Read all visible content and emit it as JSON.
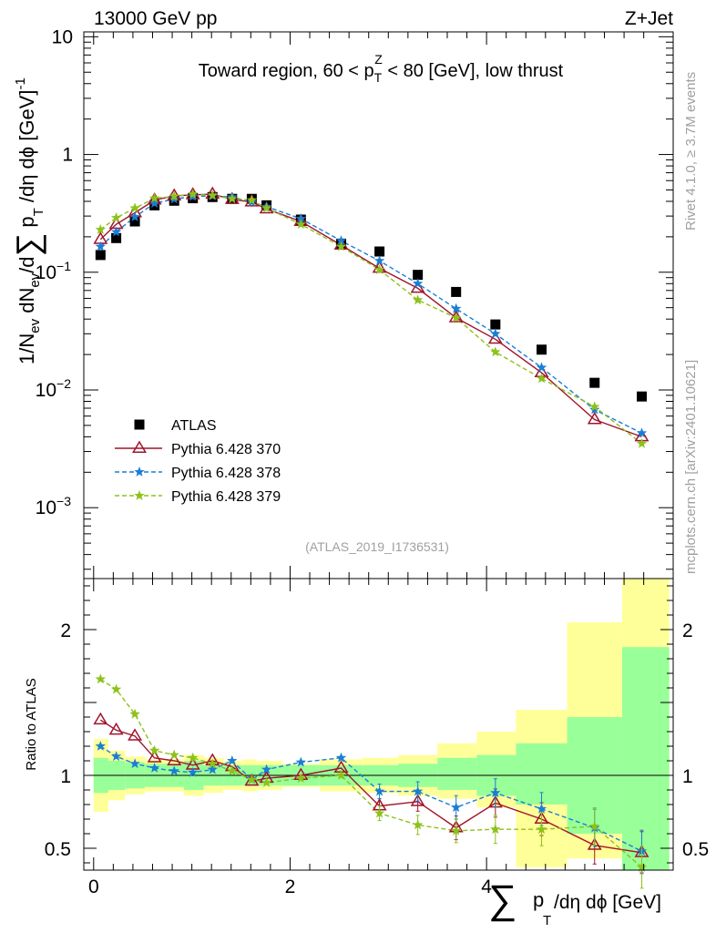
{
  "header": {
    "left": "13000 GeV pp",
    "right": "Z+Jet"
  },
  "side_labels": {
    "rivet": "Rivet 4.1.0, ≥ 3.7M events",
    "mcplots": "mcplots.cern.ch [arXiv:2401.10621]"
  },
  "colors": {
    "atlas": "#000000",
    "p370": "#a0142b",
    "p378": "#1a7ed6",
    "p379": "#8cc21a",
    "band_inner": "#99ff99",
    "band_outer": "#ffff99"
  },
  "chart_data": [
    {
      "type": "scatter",
      "title": "Toward region, 60 < p_T^Z < 80 [GeV], low thrust",
      "title_parts": {
        "pre": "Toward region, 60 < p",
        "sub": "T",
        "sup": "Z",
        "post": " < 80 [GeV], low thrust"
      },
      "watermark": "(ATLAS_2019_I1736531)",
      "ylabel": "1/N_ev dN_ev/d∑p_T/dη dφ [GeV]^-1",
      "yscale": "log",
      "ylim": [
        0.00025,
        11
      ],
      "xlim": [
        -0.1,
        5.9
      ],
      "y_ticks": [
        {
          "value": 10,
          "label": "10"
        },
        {
          "value": 1,
          "label": "1"
        },
        {
          "value": 0.1,
          "label": "10",
          "exp": "−1"
        },
        {
          "value": 0.01,
          "label": "10",
          "exp": "−2"
        },
        {
          "value": 0.001,
          "label": "10",
          "exp": "−3"
        }
      ],
      "x": [
        0.07,
        0.23,
        0.42,
        0.62,
        0.82,
        1.01,
        1.21,
        1.41,
        1.61,
        1.76,
        2.11,
        2.52,
        2.91,
        3.3,
        3.69,
        4.09,
        4.56,
        5.1,
        5.58
      ],
      "series": [
        {
          "name": "ATLAS",
          "marker": "square",
          "values": [
            0.14,
            0.195,
            0.27,
            0.37,
            0.405,
            0.425,
            0.435,
            0.42,
            0.42,
            0.37,
            0.28,
            0.175,
            0.15,
            0.095,
            0.068,
            0.036,
            0.022,
            0.0115,
            0.0088
          ]
        },
        {
          "name": "Pythia 6.428 370",
          "marker": "triangle",
          "line": "solid",
          "values": [
            0.19,
            0.255,
            0.32,
            0.41,
            0.445,
            0.455,
            0.46,
            0.415,
            0.395,
            0.345,
            0.27,
            0.17,
            0.108,
            0.073,
            0.041,
            0.027,
            0.014,
            0.0056,
            0.004
          ]
        },
        {
          "name": "Pythia 6.428 378",
          "marker": "star",
          "line": "dashed",
          "values": [
            0.165,
            0.22,
            0.295,
            0.385,
            0.418,
            0.44,
            0.445,
            0.435,
            0.395,
            0.36,
            0.285,
            0.185,
            0.125,
            0.08,
            0.049,
            0.03,
            0.0155,
            0.0068,
            0.0043
          ]
        },
        {
          "name": "Pythia 6.428 379",
          "marker": "star",
          "line": "dashed",
          "values": [
            0.23,
            0.29,
            0.35,
            0.425,
            0.44,
            0.46,
            0.45,
            0.42,
            0.41,
            0.35,
            0.255,
            0.165,
            0.105,
            0.058,
            0.041,
            0.021,
            0.0125,
            0.0072,
            0.0035
          ]
        }
      ]
    },
    {
      "type": "scatter",
      "xlabel": "∑ p_T /dη dφ [GeV]",
      "ylabel": "Ratio to ATLAS",
      "ylim": [
        0.35,
        2.35
      ],
      "xlim": [
        -0.1,
        5.9
      ],
      "reference_line": 1,
      "y_ticks": [
        {
          "value": 2,
          "label": "2"
        },
        {
          "value": 1,
          "label": "1"
        },
        {
          "value": 0.5,
          "label": "0.5"
        }
      ],
      "x_ticks": [
        {
          "value": 0,
          "label": "0"
        },
        {
          "value": 2,
          "label": "2"
        },
        {
          "value": 4,
          "label": "4"
        }
      ],
      "x_edges": [
        0.0,
        0.15,
        0.32,
        0.52,
        0.72,
        0.92,
        1.12,
        1.32,
        1.52,
        1.66,
        1.92,
        2.3,
        2.74,
        3.1,
        3.5,
        3.9,
        4.3,
        4.82,
        5.38,
        5.86
      ],
      "band_inner": [
        [
          0.88,
          1.12
        ],
        [
          0.9,
          1.1
        ],
        [
          0.91,
          1.09
        ],
        [
          0.92,
          1.08
        ],
        [
          0.92,
          1.08
        ],
        [
          0.9,
          1.1
        ],
        [
          0.93,
          1.07
        ],
        [
          0.93,
          1.07
        ],
        [
          0.93,
          1.07
        ],
        [
          0.93,
          1.07
        ],
        [
          0.93,
          1.07
        ],
        [
          0.93,
          1.07
        ],
        [
          0.93,
          1.07
        ],
        [
          0.92,
          1.08
        ],
        [
          0.9,
          1.12
        ],
        [
          0.86,
          1.14
        ],
        [
          0.8,
          1.22
        ],
        [
          0.6,
          1.4
        ],
        [
          0.35,
          1.88
        ]
      ],
      "band_outer": [
        [
          0.75,
          1.25
        ],
        [
          0.83,
          1.17
        ],
        [
          0.87,
          1.13
        ],
        [
          0.89,
          1.11
        ],
        [
          0.89,
          1.11
        ],
        [
          0.86,
          1.14
        ],
        [
          0.88,
          1.12
        ],
        [
          0.9,
          1.1
        ],
        [
          0.89,
          1.11
        ],
        [
          0.9,
          1.1
        ],
        [
          0.92,
          1.08
        ],
        [
          0.89,
          1.11
        ],
        [
          0.88,
          1.12
        ],
        [
          0.86,
          1.14
        ],
        [
          0.84,
          1.22
        ],
        [
          0.78,
          1.3
        ],
        [
          0.37,
          1.45
        ],
        [
          0.43,
          2.05
        ],
        [
          0.35,
          2.35
        ]
      ],
      "x": [
        0.07,
        0.23,
        0.42,
        0.62,
        0.82,
        1.01,
        1.21,
        1.41,
        1.61,
        1.76,
        2.11,
        2.52,
        2.91,
        3.3,
        3.69,
        4.09,
        4.56,
        5.1,
        5.58
      ],
      "series": [
        {
          "name": "Pythia 6.428 370",
          "values": [
            1.38,
            1.31,
            1.27,
            1.12,
            1.1,
            1.07,
            1.1,
            1.06,
            0.96,
            0.98,
            1.0,
            1.05,
            0.79,
            0.82,
            0.64,
            0.81,
            0.7,
            0.52,
            0.47
          ]
        },
        {
          "name": "Pythia 6.428 378",
          "values": [
            1.2,
            1.13,
            1.08,
            1.05,
            1.03,
            1.02,
            1.04,
            1.1,
            0.97,
            1.04,
            1.09,
            1.12,
            0.89,
            0.89,
            0.78,
            0.88,
            0.77,
            0.64,
            0.48
          ]
        },
        {
          "name": "Pythia 6.428 379",
          "values": [
            1.66,
            1.59,
            1.42,
            1.17,
            1.14,
            1.12,
            1.08,
            1.03,
            0.97,
            0.95,
            0.98,
            1.0,
            0.74,
            0.66,
            0.62,
            0.63,
            0.63,
            0.65,
            0.37
          ]
        }
      ]
    }
  ]
}
